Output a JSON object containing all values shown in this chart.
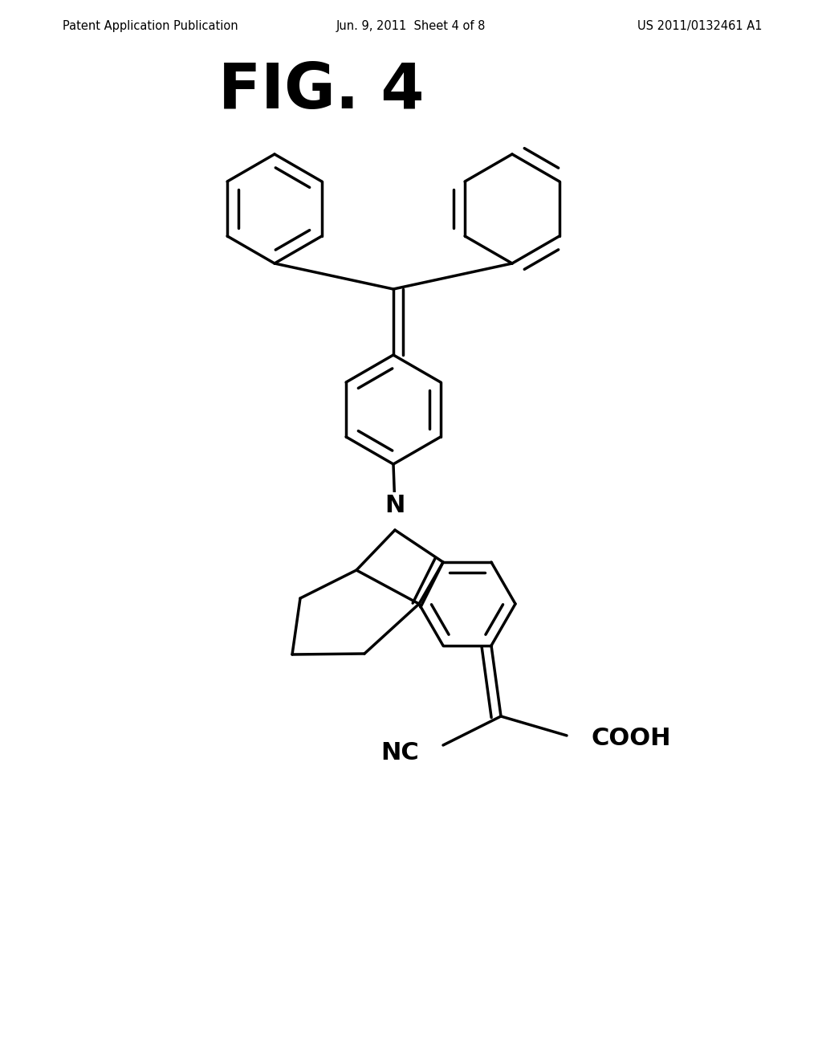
{
  "background_color": "#ffffff",
  "header_left": "Patent Application Publication",
  "header_center": "Jun. 9, 2011  Sheet 4 of 8",
  "header_right": "US 2011/0132461 A1",
  "figure_label": "FIG. 4",
  "header_fontsize": 10.5,
  "figure_label_fontsize": 56,
  "line_color": "#000000",
  "line_width": 2.5,
  "atom_N": "N",
  "atom_NC": "NC",
  "atom_COOH": "COOH"
}
